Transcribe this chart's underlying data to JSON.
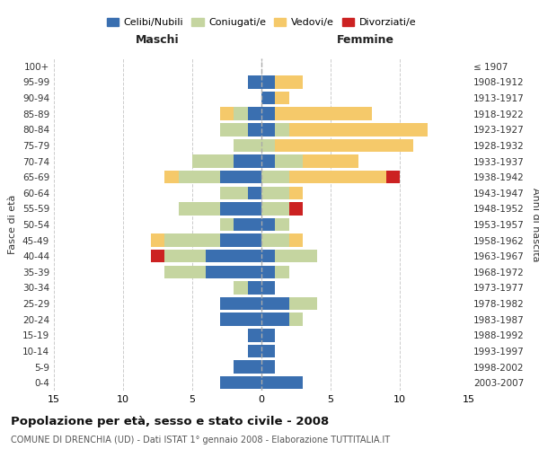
{
  "age_groups": [
    "0-4",
    "5-9",
    "10-14",
    "15-19",
    "20-24",
    "25-29",
    "30-34",
    "35-39",
    "40-44",
    "45-49",
    "50-54",
    "55-59",
    "60-64",
    "65-69",
    "70-74",
    "75-79",
    "80-84",
    "85-89",
    "90-94",
    "95-99",
    "100+"
  ],
  "birth_years": [
    "2003-2007",
    "1998-2002",
    "1993-1997",
    "1988-1992",
    "1983-1987",
    "1978-1982",
    "1973-1977",
    "1968-1972",
    "1963-1967",
    "1958-1962",
    "1953-1957",
    "1948-1952",
    "1943-1947",
    "1938-1942",
    "1933-1937",
    "1928-1932",
    "1923-1927",
    "1918-1922",
    "1913-1917",
    "1908-1912",
    "≤ 1907"
  ],
  "male_celibi": [
    3,
    2,
    1,
    1,
    3,
    3,
    1,
    4,
    4,
    3,
    2,
    3,
    1,
    3,
    2,
    0,
    1,
    1,
    0,
    1,
    0
  ],
  "male_coniugati": [
    0,
    0,
    0,
    0,
    0,
    0,
    1,
    3,
    3,
    4,
    1,
    3,
    2,
    3,
    3,
    2,
    2,
    1,
    0,
    0,
    0
  ],
  "male_vedovi": [
    0,
    0,
    0,
    0,
    0,
    0,
    0,
    0,
    0,
    1,
    0,
    0,
    0,
    1,
    0,
    0,
    0,
    1,
    0,
    0,
    0
  ],
  "male_divorziati": [
    0,
    0,
    0,
    0,
    0,
    0,
    0,
    0,
    1,
    0,
    0,
    0,
    0,
    0,
    0,
    0,
    0,
    0,
    0,
    0,
    0
  ],
  "female_celibi": [
    3,
    1,
    1,
    1,
    2,
    2,
    1,
    1,
    1,
    0,
    1,
    0,
    0,
    0,
    1,
    0,
    1,
    1,
    1,
    1,
    0
  ],
  "female_coniugati": [
    0,
    0,
    0,
    0,
    1,
    2,
    0,
    1,
    3,
    2,
    1,
    2,
    2,
    2,
    2,
    1,
    1,
    0,
    0,
    0,
    0
  ],
  "female_vedovi": [
    0,
    0,
    0,
    0,
    0,
    0,
    0,
    0,
    0,
    1,
    0,
    0,
    1,
    7,
    4,
    10,
    10,
    7,
    1,
    2,
    0
  ],
  "female_divorziati": [
    0,
    0,
    0,
    0,
    0,
    0,
    0,
    0,
    0,
    0,
    0,
    1,
    0,
    1,
    0,
    0,
    0,
    0,
    0,
    0,
    0
  ],
  "color_celibi": "#3a6fb0",
  "color_coniugati": "#c5d5a0",
  "color_vedovi": "#f5c96a",
  "color_divorziati": "#cc2222",
  "title": "Popolazione per età, sesso e stato civile - 2008",
  "subtitle": "COMUNE DI DRENCHIA (UD) - Dati ISTAT 1° gennaio 2008 - Elaborazione TUTTITALIA.IT",
  "xlabel_left": "Maschi",
  "xlabel_right": "Femmine",
  "ylabel_left": "Fasce di età",
  "ylabel_right": "Anni di nascita",
  "xlim": 15,
  "legend_labels": [
    "Celibi/Nubili",
    "Coniugati/e",
    "Vedovi/e",
    "Divorziati/e"
  ],
  "background_color": "#ffffff",
  "text_color": "#333333",
  "grid_color": "#cccccc",
  "maschi_color": "#222222",
  "femmine_color": "#222222"
}
